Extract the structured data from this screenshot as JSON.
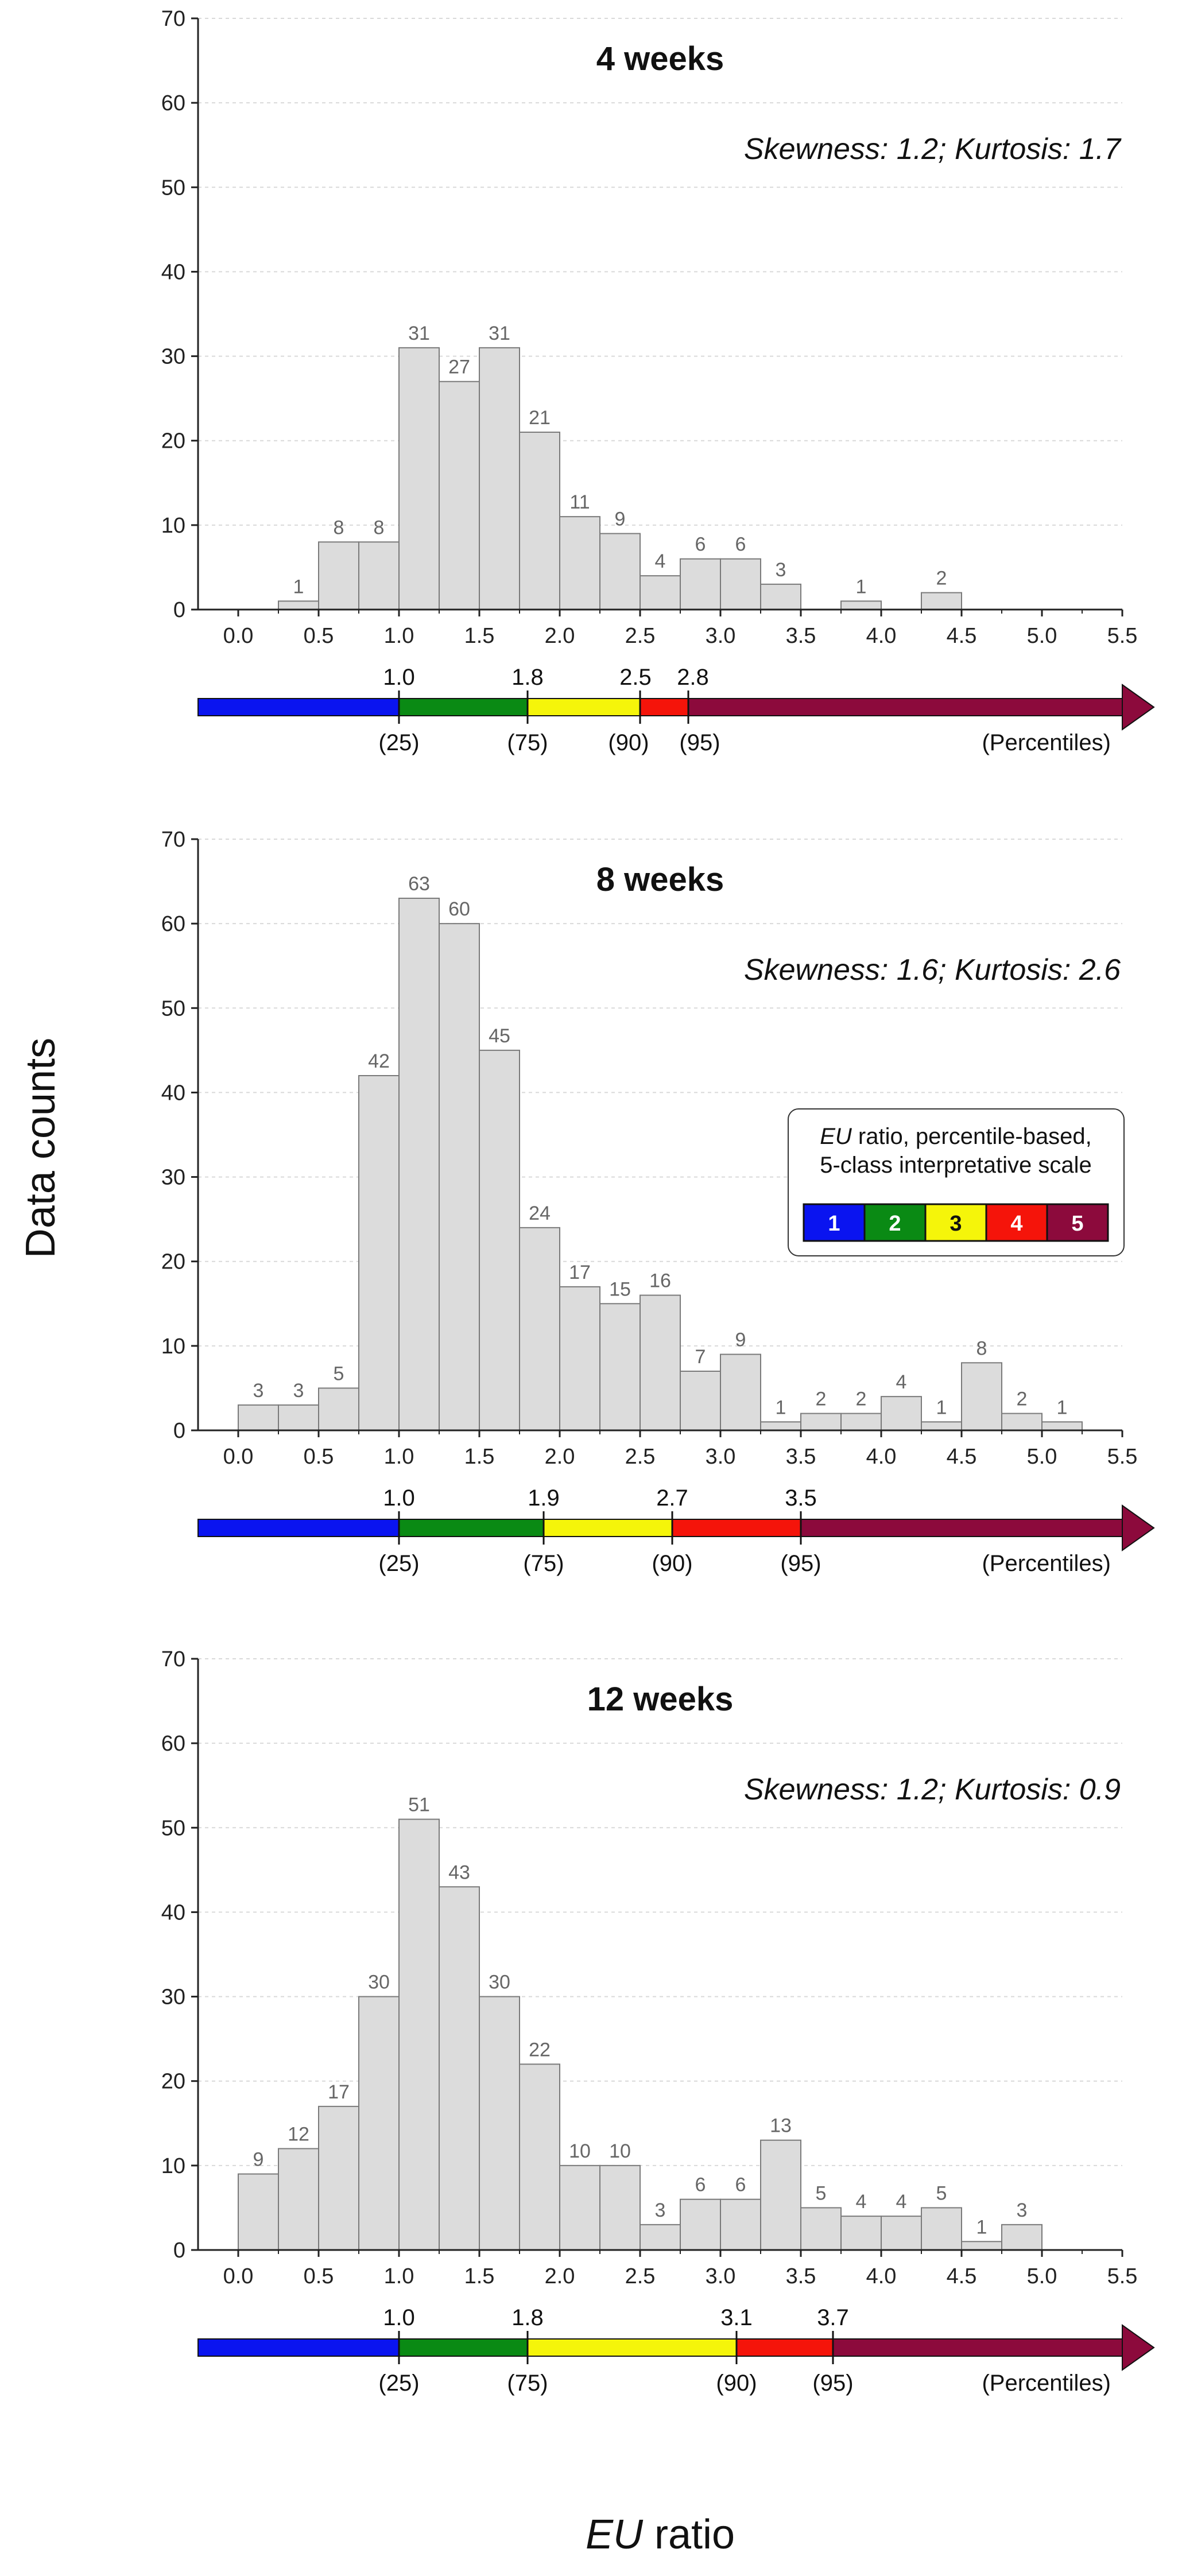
{
  "figure": {
    "ylabel": "Data counts",
    "xlabel_italic": "EU",
    "xlabel_rest": " ratio"
  },
  "legend": {
    "line1_italic": "EU",
    "line1_rest": " ratio, percentile-based,",
    "line2": "5-class interpretative scale",
    "classes": [
      {
        "label": "1",
        "color": "#0a14f0",
        "text_color": "#ffffff"
      },
      {
        "label": "2",
        "color": "#0a8a14",
        "text_color": "#ffffff"
      },
      {
        "label": "3",
        "color": "#f5f50a",
        "text_color": "#111111"
      },
      {
        "label": "4",
        "color": "#f5140a",
        "text_color": "#ffffff"
      },
      {
        "label": "5",
        "color": "#8c0a3c",
        "text_color": "#ffffff"
      }
    ]
  },
  "scale_colors": [
    "#0a14f0",
    "#0a8a14",
    "#f5f50a",
    "#f5140a",
    "#8c0a3c"
  ],
  "scale_end_label": "(Percentiles)",
  "chart_data": [
    {
      "type": "bar",
      "title": "4 weeks",
      "annotation": "Skewness: 1.2; Kurtosis: 1.7",
      "bin_width": 0.25,
      "x_start": 0.0,
      "xlim": [
        -0.25,
        5.5
      ],
      "ylim": [
        0,
        70
      ],
      "xticks": [
        "0.0",
        "0.5",
        "1.0",
        "1.5",
        "2.0",
        "2.5",
        "3.0",
        "3.5",
        "4.0",
        "4.5",
        "5.0",
        "5.5"
      ],
      "yticks": [
        "0",
        "10",
        "20",
        "30",
        "40",
        "50",
        "60",
        "70"
      ],
      "values": [
        0,
        1,
        8,
        8,
        31,
        27,
        31,
        21,
        11,
        9,
        4,
        6,
        6,
        3,
        0,
        1,
        0,
        2,
        0,
        0,
        0,
        0
      ],
      "percentile_thresholds": [
        {
          "value": 1.0,
          "label": "1.0",
          "percentile": "(25)"
        },
        {
          "value": 1.8,
          "label": "1.8",
          "percentile": "(75)"
        },
        {
          "value": 2.5,
          "label": "2.5",
          "percentile": "(90)"
        },
        {
          "value": 2.8,
          "label": "2.8",
          "percentile": "(95)"
        }
      ],
      "grid": true
    },
    {
      "type": "bar",
      "title": "8 weeks",
      "annotation": "Skewness: 1.6; Kurtosis: 2.6",
      "bin_width": 0.25,
      "x_start": 0.0,
      "xlim": [
        -0.25,
        5.5
      ],
      "ylim": [
        0,
        70
      ],
      "xticks": [
        "0.0",
        "0.5",
        "1.0",
        "1.5",
        "2.0",
        "2.5",
        "3.0",
        "3.5",
        "4.0",
        "4.5",
        "5.0",
        "5.5"
      ],
      "yticks": [
        "0",
        "10",
        "20",
        "30",
        "40",
        "50",
        "60",
        "70"
      ],
      "values": [
        3,
        3,
        5,
        42,
        63,
        60,
        45,
        24,
        17,
        15,
        16,
        7,
        9,
        1,
        2,
        2,
        4,
        1,
        8,
        2,
        1
      ],
      "percentile_thresholds": [
        {
          "value": 1.0,
          "label": "1.0",
          "percentile": "(25)"
        },
        {
          "value": 1.9,
          "label": "1.9",
          "percentile": "(75)"
        },
        {
          "value": 2.7,
          "label": "2.7",
          "percentile": "(90)"
        },
        {
          "value": 3.5,
          "label": "3.5",
          "percentile": "(95)"
        }
      ],
      "grid": true
    },
    {
      "type": "bar",
      "title": "12 weeks",
      "annotation": "Skewness: 1.2; Kurtosis: 0.9",
      "bin_width": 0.25,
      "x_start": 0.0,
      "xlim": [
        -0.25,
        5.5
      ],
      "ylim": [
        0,
        70
      ],
      "xticks": [
        "0.0",
        "0.5",
        "1.0",
        "1.5",
        "2.0",
        "2.5",
        "3.0",
        "3.5",
        "4.0",
        "4.5",
        "5.0",
        "5.5"
      ],
      "yticks": [
        "0",
        "10",
        "20",
        "30",
        "40",
        "50",
        "60",
        "70"
      ],
      "values": [
        9,
        12,
        17,
        30,
        51,
        43,
        30,
        22,
        10,
        10,
        3,
        6,
        6,
        13,
        5,
        4,
        4,
        5,
        1,
        3
      ],
      "percentile_thresholds": [
        {
          "value": 1.0,
          "label": "1.0",
          "percentile": "(25)"
        },
        {
          "value": 1.8,
          "label": "1.8",
          "percentile": "(75)"
        },
        {
          "value": 3.1,
          "label": "3.1",
          "percentile": "(90)"
        },
        {
          "value": 3.7,
          "label": "3.7",
          "percentile": "(95)"
        }
      ],
      "grid": true
    }
  ]
}
